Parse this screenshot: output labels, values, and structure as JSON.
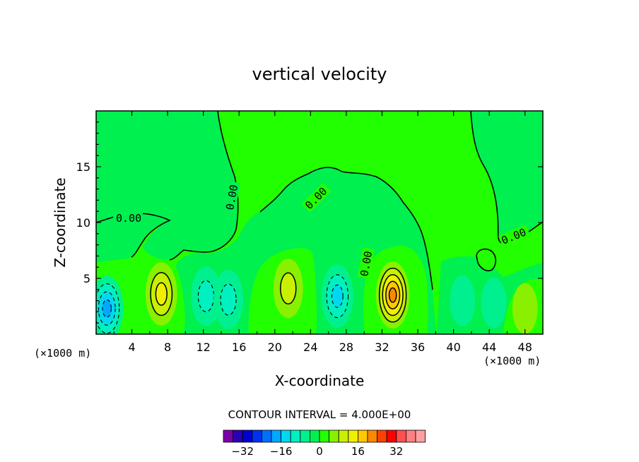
{
  "chart_data": {
    "type": "contour",
    "title": "vertical velocity",
    "xlabel": "X-coordinate",
    "ylabel": "Z-coordinate",
    "x_unit": "(×1000 m)",
    "z_unit": "(×1000 m)",
    "xlim": [
      0,
      50
    ],
    "zlim": [
      0,
      20
    ],
    "x_ticks": [
      4,
      8,
      12,
      16,
      20,
      24,
      28,
      32,
      36,
      40,
      44,
      48
    ],
    "z_ticks": [
      5,
      10,
      15
    ],
    "contour_interval_label": "CONTOUR INTERVAL = 4.000E+00",
    "contour_interval": 4,
    "zero_contour_label": "0.00",
    "colorbar": {
      "ticks": [
        "−32",
        "−16",
        "0",
        "16",
        "32"
      ],
      "levels": [
        -36,
        -32,
        -28,
        -24,
        -20,
        -16,
        -12,
        -8,
        -4,
        0,
        4,
        8,
        12,
        16,
        20,
        24,
        28,
        32,
        36
      ],
      "colors": [
        "#7a00a8",
        "#2a00b4",
        "#0000d0",
        "#0030f0",
        "#0070ff",
        "#00a8ff",
        "#00d8f0",
        "#00f0c0",
        "#00f090",
        "#00f050",
        "#22ff00",
        "#88f000",
        "#c8f000",
        "#eef000",
        "#ffc800",
        "#ff8800",
        "#ff4000",
        "#ff0000",
        "#ff5050",
        "#ff8080",
        "#ffa0a0"
      ]
    },
    "cells": [
      {
        "x": 1.2,
        "z": 2.3,
        "w_max": -18
      },
      {
        "x": 7.3,
        "z": 3.6,
        "w_max": 14
      },
      {
        "x": 12.3,
        "z": 3.4,
        "w_max": -9
      },
      {
        "x": 14.8,
        "z": 3.1,
        "w_max": -10
      },
      {
        "x": 21.5,
        "z": 4.1,
        "w_max": 10
      },
      {
        "x": 27.0,
        "z": 3.4,
        "w_max": -14
      },
      {
        "x": 33.2,
        "z": 3.5,
        "w_max": 20
      },
      {
        "x": 41.0,
        "z": 3.0,
        "w_max": -4
      },
      {
        "x": 44.5,
        "z": 2.8,
        "w_max": -5
      },
      {
        "x": 48.0,
        "z": 2.3,
        "w_max": 6
      }
    ]
  }
}
